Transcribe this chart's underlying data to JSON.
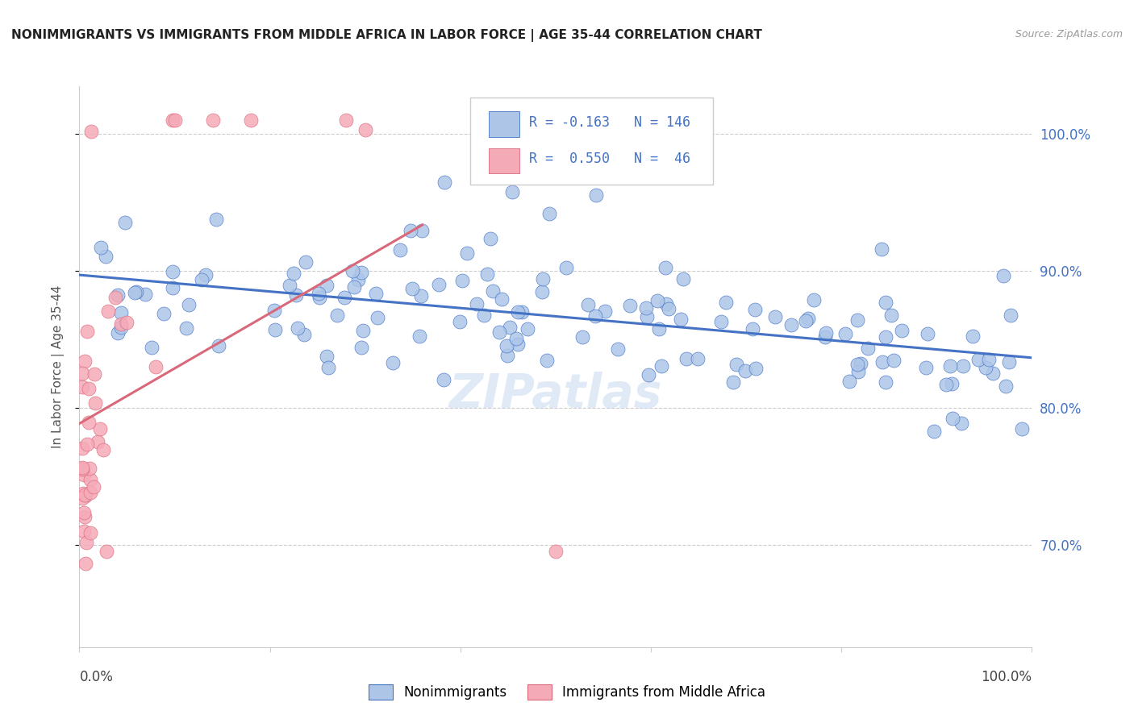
{
  "title": "NONIMMIGRANTS VS IMMIGRANTS FROM MIDDLE AFRICA IN LABOR FORCE | AGE 35-44 CORRELATION CHART",
  "source": "Source: ZipAtlas.com",
  "ylabel": "In Labor Force | Age 35-44",
  "xmin": 0.0,
  "xmax": 1.0,
  "ymin": 0.625,
  "ymax": 1.035,
  "blue_R": -0.163,
  "blue_N": 146,
  "pink_R": 0.55,
  "pink_N": 46,
  "blue_color": "#adc6e8",
  "pink_color": "#f5aab8",
  "blue_line_color": "#4472c4",
  "pink_line_color": "#d9697a",
  "right_ytick_labels": [
    "100.0%",
    "90.0%",
    "80.0%",
    "70.0%"
  ],
  "right_ytick_values": [
    1.0,
    0.9,
    0.8,
    0.7
  ],
  "watermark": "ZIPatlas"
}
